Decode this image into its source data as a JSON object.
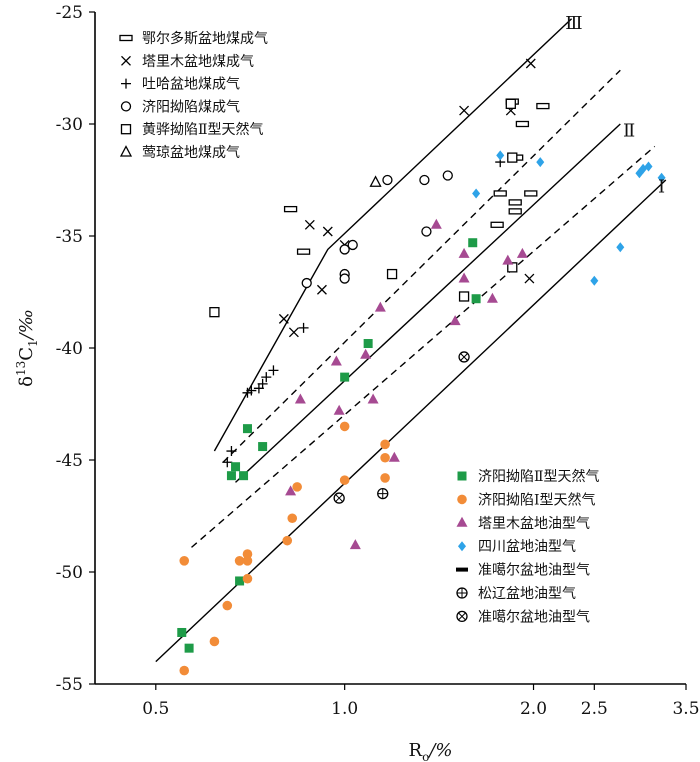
{
  "chart_data": {
    "type": "scatter",
    "xscale": "log",
    "xlim": [
      0.4,
      3.5
    ],
    "ylim": [
      -55,
      -25
    ],
    "xticks": [
      0.5,
      1.0,
      2.0,
      2.5,
      3.5
    ],
    "xtick_labels": [
      "0.5",
      "1.0",
      "2.0",
      "2.5",
      "3.5"
    ],
    "yticks": [
      -55,
      -50,
      -45,
      -40,
      -35,
      -30,
      -25
    ],
    "ytick_labels": [
      "-55",
      "-50",
      "-45",
      "-40",
      "-35",
      "-30",
      "-25"
    ],
    "xlabel": "Ro/%",
    "ylabel": "δ13C1/‰",
    "reference_lines": [
      {
        "label": "Ⅲ",
        "style": "solid",
        "points": [
          [
            0.62,
            -44.6
          ],
          [
            0.94,
            -35.6
          ],
          [
            2.3,
            -25.3
          ]
        ]
      },
      {
        "label": "",
        "style": "dashed",
        "points": [
          [
            0.64,
            -45.1
          ],
          [
            2.75,
            -27.6
          ]
        ]
      },
      {
        "label": "Ⅱ",
        "style": "solid",
        "points": [
          [
            0.67,
            -46.0
          ],
          [
            2.75,
            -30.0
          ]
        ]
      },
      {
        "label": "",
        "style": "dashed",
        "points": [
          [
            0.57,
            -48.9
          ],
          [
            3.12,
            -31.0
          ]
        ]
      },
      {
        "label": "Ⅰ",
        "style": "solid",
        "points": [
          [
            0.5,
            -54.0
          ],
          [
            3.25,
            -32.5
          ]
        ]
      }
    ],
    "line_labels": [
      {
        "text": "Ⅲ",
        "x": 2.32,
        "y": -25.5
      },
      {
        "text": "Ⅱ",
        "x": 2.84,
        "y": -30.3
      },
      {
        "text": "Ⅰ",
        "x": 3.2,
        "y": -32.8
      }
    ],
    "series": [
      {
        "name": "鄂尔多斯盆地煤成气",
        "marker": "open-rect",
        "legend_group": "top",
        "points": [
          [
            0.82,
            -33.8
          ],
          [
            0.86,
            -35.7
          ],
          [
            1.85,
            -29.0
          ],
          [
            1.92,
            -30.0
          ],
          [
            1.98,
            -33.1
          ],
          [
            2.07,
            -29.2
          ],
          [
            1.77,
            -33.1
          ],
          [
            1.87,
            -33.5
          ],
          [
            1.87,
            -33.9
          ],
          [
            1.75,
            -34.5
          ],
          [
            1.88,
            -31.5
          ]
        ]
      },
      {
        "name": "塔里木盆地煤成气",
        "marker": "x",
        "legend_group": "top",
        "points": [
          [
            1.98,
            -27.3
          ],
          [
            1.55,
            -29.4
          ],
          [
            1.84,
            -29.4
          ],
          [
            0.94,
            -34.8
          ],
          [
            1.0,
            -35.4
          ],
          [
            0.88,
            -34.5
          ],
          [
            0.92,
            -37.4
          ],
          [
            0.8,
            -38.7
          ],
          [
            0.83,
            -39.3
          ],
          [
            1.97,
            -36.9
          ]
        ]
      },
      {
        "name": "吐哈盆地煤成气",
        "marker": "plus",
        "legend_group": "top",
        "points": [
          [
            0.86,
            -39.1
          ],
          [
            0.77,
            -41.0
          ],
          [
            0.75,
            -41.3
          ],
          [
            0.74,
            -41.6
          ],
          [
            0.73,
            -41.8
          ],
          [
            0.71,
            -41.9
          ],
          [
            0.7,
            -42.0
          ],
          [
            0.66,
            -44.6
          ],
          [
            0.65,
            -45.1
          ],
          [
            1.77,
            -31.7
          ]
        ]
      },
      {
        "name": "济阳拗陷煤成气",
        "marker": "open-circle",
        "legend_group": "top",
        "points": [
          [
            0.87,
            -37.1
          ],
          [
            1.0,
            -36.7
          ],
          [
            1.0,
            -36.9
          ],
          [
            1.03,
            -35.4
          ],
          [
            1.0,
            -35.6
          ],
          [
            1.17,
            -32.5
          ],
          [
            1.34,
            -32.5
          ],
          [
            1.46,
            -32.3
          ],
          [
            1.35,
            -34.8
          ]
        ]
      },
      {
        "name": "黄骅拗陷Ⅱ型天然气",
        "marker": "open-square",
        "legend_group": "top",
        "points": [
          [
            0.62,
            -38.4
          ],
          [
            1.19,
            -36.7
          ],
          [
            1.55,
            -37.7
          ],
          [
            1.85,
            -36.4
          ],
          [
            1.85,
            -31.5
          ],
          [
            1.84,
            -29.1
          ]
        ]
      },
      {
        "name": "莺琼盆地煤成气",
        "marker": "open-triangle",
        "legend_group": "top",
        "points": [
          [
            1.12,
            -32.6
          ]
        ]
      },
      {
        "name": "济阳拗陷Ⅱ型天然气",
        "marker": "filled-square",
        "color": "#1e9b48",
        "legend_group": "bottom",
        "points": [
          [
            0.55,
            -52.7
          ],
          [
            0.565,
            -53.4
          ],
          [
            0.68,
            -50.4
          ],
          [
            0.67,
            -45.3
          ],
          [
            0.66,
            -45.7
          ],
          [
            0.69,
            -45.7
          ],
          [
            0.7,
            -43.6
          ],
          [
            0.74,
            -44.4
          ],
          [
            1.0,
            -41.3
          ],
          [
            1.09,
            -39.8
          ],
          [
            1.6,
            -35.3
          ],
          [
            1.62,
            -37.8
          ]
        ]
      },
      {
        "name": "济阳拗陷Ⅰ型天然气",
        "marker": "filled-circle",
        "color": "#f28c38",
        "legend_group": "bottom",
        "points": [
          [
            0.555,
            -49.5
          ],
          [
            0.555,
            -54.4
          ],
          [
            0.62,
            -53.1
          ],
          [
            0.65,
            -51.5
          ],
          [
            0.68,
            -49.5
          ],
          [
            0.7,
            -49.2
          ],
          [
            0.7,
            -49.5
          ],
          [
            0.7,
            -50.3
          ],
          [
            0.81,
            -48.6
          ],
          [
            0.825,
            -47.6
          ],
          [
            0.84,
            -46.2
          ],
          [
            1.0,
            -45.9
          ],
          [
            1.0,
            -43.5
          ],
          [
            1.16,
            -44.3
          ],
          [
            1.16,
            -44.9
          ],
          [
            1.16,
            -45.8
          ]
        ]
      },
      {
        "name": "塔里木盆地油型气",
        "marker": "filled-triangle",
        "color": "#a64a92",
        "legend_group": "bottom",
        "points": [
          [
            0.82,
            -46.4
          ],
          [
            0.85,
            -42.3
          ],
          [
            0.97,
            -40.6
          ],
          [
            0.98,
            -42.8
          ],
          [
            1.04,
            -48.8
          ],
          [
            1.08,
            -40.3
          ],
          [
            1.11,
            -42.3
          ],
          [
            1.14,
            -38.2
          ],
          [
            1.2,
            -44.9
          ],
          [
            1.4,
            -34.5
          ],
          [
            1.5,
            -38.8
          ],
          [
            1.55,
            -36.9
          ],
          [
            1.55,
            -35.8
          ],
          [
            1.72,
            -37.8
          ],
          [
            1.82,
            -36.1
          ],
          [
            1.92,
            -35.8
          ]
        ]
      },
      {
        "name": "四川盆地油型气",
        "marker": "filled-diamond",
        "color": "#2ea3e8",
        "legend_group": "bottom",
        "points": [
          [
            1.62,
            -33.1
          ],
          [
            1.77,
            -31.4
          ],
          [
            2.05,
            -31.7
          ],
          [
            2.5,
            -37.0
          ],
          [
            2.75,
            -35.5
          ],
          [
            2.95,
            -32.2
          ],
          [
            2.99,
            -32.0
          ],
          [
            3.05,
            -31.9
          ],
          [
            3.2,
            -32.4
          ]
        ]
      },
      {
        "name": "准噶尔盆地油型气",
        "marker": "filled-bar",
        "color": "#000000",
        "legend_group": "bottom",
        "points": []
      },
      {
        "name": "松辽盆地油型气",
        "marker": "circle-plus",
        "legend_group": "bottom",
        "points": [
          [
            1.15,
            -46.5
          ]
        ]
      },
      {
        "name": "准噶尔盆地油型气",
        "marker": "circle-x",
        "legend_group": "bottom",
        "points": [
          [
            1.55,
            -40.4
          ],
          [
            0.98,
            -46.7
          ]
        ]
      }
    ]
  }
}
